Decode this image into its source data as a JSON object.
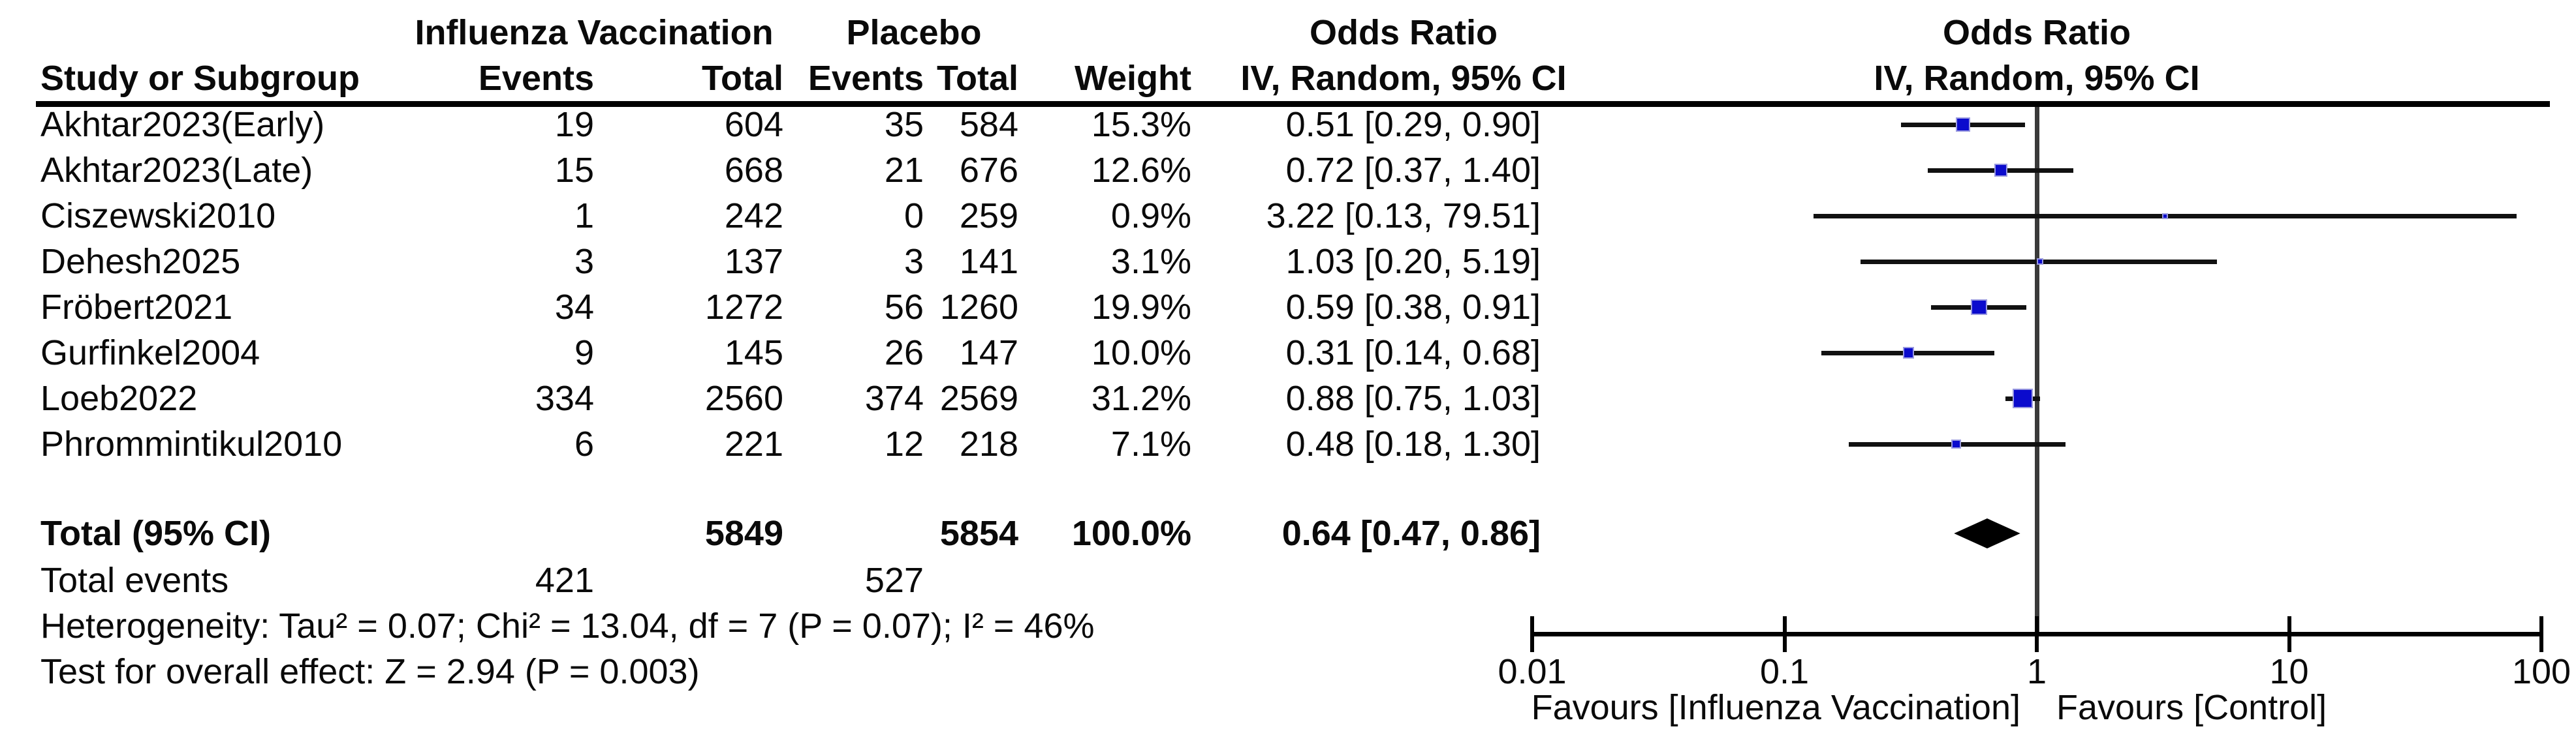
{
  "table": {
    "group_headers": {
      "vaccination": "Influenza Vaccination",
      "placebo": "Placebo",
      "odds_ratio": "Odds Ratio",
      "odds_ratio_plot": "Odds Ratio"
    },
    "column_headers": {
      "study": "Study or Subgroup",
      "events_vacc": "Events",
      "total_vacc": "Total",
      "events_placebo": "Events",
      "total_placebo": "Total",
      "weight": "Weight",
      "ci": "IV, Random, 95% CI",
      "ci_plot": "IV, Random, 95% CI"
    }
  },
  "totals": {
    "label": "Total (95% CI)",
    "total_vacc": "5849",
    "total_placebo": "5854",
    "weight": "100.0%",
    "ci_text": "0.64 [0.47, 0.86]"
  },
  "total_events": {
    "label": "Total events",
    "vacc": "421",
    "placebo": "527"
  },
  "footer": {
    "heterogeneity": "Heterogeneity: Tau² = 0.07; Chi² = 13.04, df = 7 (P = 0.07); I² = 46%",
    "overall_effect": "Test for overall effect: Z = 2.94 (P = 0.003)"
  },
  "axis": {
    "tick_labels": [
      "0.01",
      "0.1",
      "1",
      "10",
      "100"
    ],
    "favours_left": "Favours [Influenza Vaccination]",
    "favours_right": "Favours [Control]"
  },
  "colors": {
    "square": "#0b0bcd",
    "square_border": "#9a9ae0",
    "diamond": "#000000",
    "ci_line": "#111111",
    "null_line": "#3a3a3a",
    "text": "#0a0a0a"
  },
  "chart_data": {
    "type": "scatter",
    "subtype": "forest-plot",
    "title": "Odds Ratio",
    "effect_measure": "IV, Random, 95% CI",
    "x_scale": "log10",
    "xlim": [
      0.01,
      100
    ],
    "x_ticks": [
      0.01,
      0.1,
      1,
      10,
      100
    ],
    "null_line": 1,
    "legend_left": "Favours [Influenza Vaccination]",
    "legend_right": "Favours [Control]",
    "studies": [
      {
        "name": "Akhtar2023(Early)",
        "events_vacc": "19",
        "total_vacc": "604",
        "events_placebo": "35",
        "total_placebo": "584",
        "weight": "15.3%",
        "weight_pct": 15.3,
        "ci_text": "0.51 [0.29, 0.90]",
        "or": 0.51,
        "ci_low": 0.29,
        "ci_high": 0.9
      },
      {
        "name": "Akhtar2023(Late)",
        "events_vacc": "15",
        "total_vacc": "668",
        "events_placebo": "21",
        "total_placebo": "676",
        "weight": "12.6%",
        "weight_pct": 12.6,
        "ci_text": "0.72 [0.37, 1.40]",
        "or": 0.72,
        "ci_low": 0.37,
        "ci_high": 1.4
      },
      {
        "name": "Ciszewski2010",
        "events_vacc": "1",
        "total_vacc": "242",
        "events_placebo": "0",
        "total_placebo": "259",
        "weight": "0.9%",
        "weight_pct": 0.9,
        "ci_text": "3.22 [0.13, 79.51]",
        "or": 3.22,
        "ci_low": 0.13,
        "ci_high": 79.51
      },
      {
        "name": "Dehesh2025",
        "events_vacc": "3",
        "total_vacc": "137",
        "events_placebo": "3",
        "total_placebo": "141",
        "weight": "3.1%",
        "weight_pct": 3.1,
        "ci_text": "1.03 [0.20, 5.19]",
        "or": 1.03,
        "ci_low": 0.2,
        "ci_high": 5.19
      },
      {
        "name": "Fröbert2021",
        "events_vacc": "34",
        "total_vacc": "1272",
        "events_placebo": "56",
        "total_placebo": "1260",
        "weight": "19.9%",
        "weight_pct": 19.9,
        "ci_text": "0.59 [0.38, 0.91]",
        "or": 0.59,
        "ci_low": 0.38,
        "ci_high": 0.91
      },
      {
        "name": "Gurfinkel2004",
        "events_vacc": "9",
        "total_vacc": "145",
        "events_placebo": "26",
        "total_placebo": "147",
        "weight": "10.0%",
        "weight_pct": 10.0,
        "ci_text": "0.31 [0.14, 0.68]",
        "or": 0.31,
        "ci_low": 0.14,
        "ci_high": 0.68
      },
      {
        "name": "Loeb2022",
        "events_vacc": "334",
        "total_vacc": "2560",
        "events_placebo": "374",
        "total_placebo": "2569",
        "weight": "31.2%",
        "weight_pct": 31.2,
        "ci_text": "0.88 [0.75, 1.03]",
        "or": 0.88,
        "ci_low": 0.75,
        "ci_high": 1.03
      },
      {
        "name": "Phrommintikul2010",
        "events_vacc": "6",
        "total_vacc": "221",
        "events_placebo": "12",
        "total_placebo": "218",
        "weight": "7.1%",
        "weight_pct": 7.1,
        "ci_text": "0.48 [0.18, 1.30]",
        "or": 0.48,
        "ci_low": 0.18,
        "ci_high": 1.3
      }
    ],
    "total": {
      "label": "Total (95% CI)",
      "or": 0.64,
      "ci_low": 0.47,
      "ci_high": 0.86,
      "weight_pct": 100.0,
      "ci_text": "0.64 [0.47, 0.86]"
    }
  }
}
